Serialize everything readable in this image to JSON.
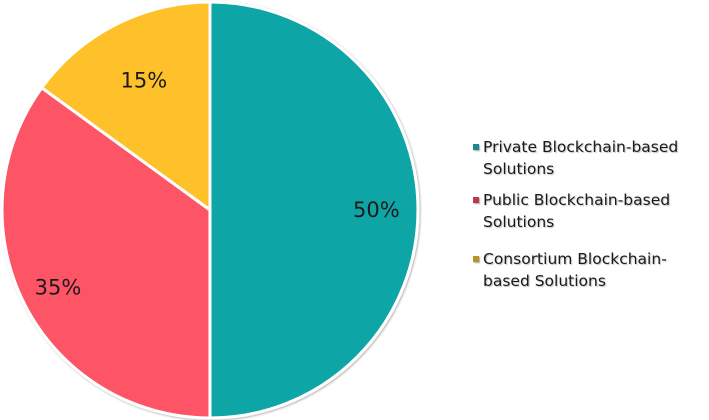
{
  "chart_data": {
    "type": "pie",
    "title": "",
    "categories": [
      "Private Blockchain-based Solutions",
      "Public Blockchain-based Solutions",
      "Consortium Blockchain-based Solutions"
    ],
    "values": [
      50,
      35,
      15
    ],
    "labels": [
      "50%",
      "35%",
      "15%"
    ],
    "colors": [
      "#0fa5a5",
      "#fd5566",
      "#fec12b"
    ],
    "legend_position": "right",
    "start_angle": "12 o'clock, clockwise"
  },
  "legend": {
    "items": [
      {
        "line1": "Private Blockchain-based",
        "line2": "Solutions",
        "color": "#1a8a8c"
      },
      {
        "line1": "Public  Blockchain-based",
        "line2": "Solutions",
        "color": "#c0394a"
      },
      {
        "line1": "Consortium  Blockchain-",
        "line2": "based Solutions",
        "color": "#b8932a"
      }
    ]
  }
}
